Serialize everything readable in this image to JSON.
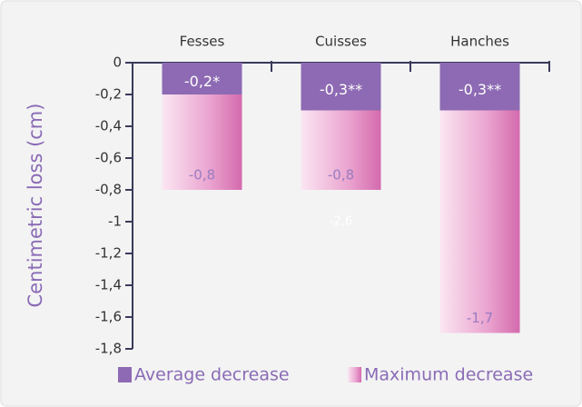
{
  "chart_data": {
    "type": "bar",
    "y_label": "Centimetric loss (cm)",
    "categories": [
      "Fesses",
      "Cuisses",
      "Hanches"
    ],
    "series": [
      {
        "name": "Average decrease",
        "color": "#8d6ab3",
        "values": [
          -0.2,
          -0.3,
          -0.3
        ],
        "value_labels": [
          "-0,2*",
          "-0,3**",
          "-0,3**"
        ]
      },
      {
        "name": "Maximum decrease",
        "color": "#d873b2",
        "values": [
          -0.8,
          -0.8,
          -1.7
        ],
        "value_labels": [
          "-0,8",
          "-0,8",
          "-1,7"
        ]
      }
    ],
    "annotations": [
      "-2,6"
    ],
    "ylim": [
      -1.8,
      0
    ],
    "yticks": [
      0,
      {
        "value": -0.2,
        "label": "-0,2"
      },
      {
        "value": -0.4,
        "label": "-0,4"
      },
      {
        "value": -0.6,
        "label": "-0,6"
      },
      {
        "value": -0.8,
        "label": "-0,8"
      },
      -1,
      {
        "value": -1.2,
        "label": "-1,2"
      },
      {
        "value": -1.4,
        "label": "-1,4"
      },
      {
        "value": -1.6,
        "label": "-1,6"
      },
      {
        "value": -1.8,
        "label": "-1,8"
      }
    ]
  }
}
